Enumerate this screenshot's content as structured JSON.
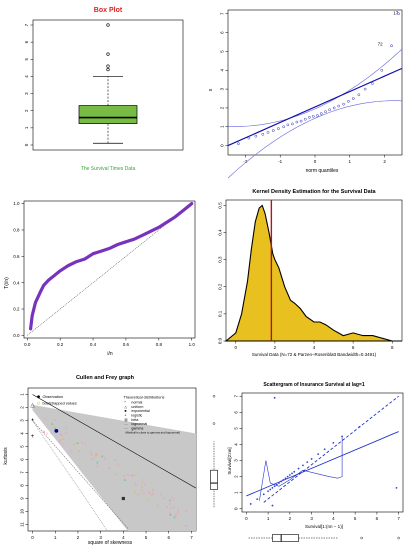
{
  "chart_data": [
    {
      "type": "box",
      "title": "Box Plot",
      "xlabel": "The Survival Times Data",
      "ylim": [
        0,
        7
      ],
      "yticks": [
        0,
        1,
        2,
        3,
        4,
        5,
        6,
        7
      ],
      "box": {
        "whisker_low": 0.1,
        "q1": 1.25,
        "median": 1.6,
        "q3": 2.3,
        "whisker_high": 4.0
      },
      "outliers": [
        4.4,
        4.6,
        5.3,
        7.0
      ],
      "colors": {
        "title": "#dd2222",
        "box": "#77bb44",
        "xlabel": "#33aa33"
      }
    },
    {
      "type": "scatter",
      "subtype": "qq-plot",
      "xlabel": "norm quantiles",
      "ylabel": "x",
      "xlim": [
        -2.5,
        2.5
      ],
      "ylim": [
        -0.5,
        7.2
      ],
      "xticks": [
        -2,
        -1,
        0,
        1,
        2
      ],
      "yticks": [
        0,
        1,
        2,
        3,
        4,
        5,
        6,
        7
      ],
      "annotations": [
        "17",
        "72"
      ],
      "line": [
        [
          -2.5,
          0.0
        ],
        [
          2.5,
          4.1
        ]
      ],
      "points_x": [
        -2.2,
        -1.9,
        -1.7,
        -1.5,
        -1.35,
        -1.2,
        -1.05,
        -0.9,
        -0.78,
        -0.65,
        -0.52,
        -0.4,
        -0.28,
        -0.16,
        -0.05,
        0.07,
        0.18,
        0.3,
        0.42,
        0.55,
        0.68,
        0.82,
        0.96,
        1.1,
        1.26,
        1.44,
        1.65,
        1.92,
        2.2,
        2.4
      ],
      "points_y": [
        0.1,
        0.4,
        0.5,
        0.6,
        0.7,
        0.8,
        0.9,
        1.0,
        1.1,
        1.15,
        1.25,
        1.3,
        1.4,
        1.5,
        1.55,
        1.6,
        1.7,
        1.8,
        1.9,
        2.0,
        2.1,
        2.2,
        2.35,
        2.5,
        2.7,
        3.0,
        3.3,
        4.0,
        5.3,
        7.0
      ],
      "colors": {
        "points": "#3333bb",
        "line": "#1111aa",
        "band": "#6666dd"
      }
    },
    {
      "type": "line",
      "subtype": "ttt-plot",
      "xlabel": "i/n",
      "ylabel": "T(i/n)",
      "xlim": [
        0,
        1
      ],
      "ylim": [
        0,
        1
      ],
      "xticks": [
        0.0,
        0.2,
        0.4,
        0.6,
        0.8,
        1.0
      ],
      "yticks": [
        0.0,
        0.2,
        0.4,
        0.6,
        0.8,
        1.0
      ],
      "x": [
        0.02,
        0.03,
        0.05,
        0.08,
        0.1,
        0.13,
        0.16,
        0.2,
        0.25,
        0.3,
        0.35,
        0.4,
        0.45,
        0.5,
        0.55,
        0.6,
        0.65,
        0.7,
        0.75,
        0.8,
        0.85,
        0.9,
        0.95,
        1.0
      ],
      "y": [
        0.05,
        0.15,
        0.25,
        0.33,
        0.38,
        0.42,
        0.45,
        0.49,
        0.53,
        0.56,
        0.58,
        0.62,
        0.64,
        0.66,
        0.69,
        0.71,
        0.73,
        0.76,
        0.79,
        0.82,
        0.86,
        0.9,
        0.95,
        1.0
      ],
      "colors": {
        "line": "#7733bb"
      }
    },
    {
      "type": "area",
      "subtype": "density",
      "title": "Kernel Density Estimation for the Survival Data",
      "xlabel": "Survival Data (N=72 & Parzen–Rosenblatt Bandwidth=0.3491)",
      "xlim": [
        -0.5,
        8.5
      ],
      "ylim": [
        0,
        0.52
      ],
      "xticks": [
        0,
        2,
        4,
        6,
        8
      ],
      "yticks": [
        0.0,
        0.1,
        0.2,
        0.3,
        0.4,
        0.5
      ],
      "x": [
        -0.5,
        0.0,
        0.3,
        0.6,
        0.8,
        1.0,
        1.2,
        1.35,
        1.5,
        1.7,
        1.9,
        2.0,
        2.2,
        2.5,
        2.8,
        3.0,
        3.3,
        3.6,
        4.0,
        4.3,
        4.6,
        5.0,
        5.5,
        6.0,
        6.5,
        7.0,
        7.5,
        8.0,
        8.5
      ],
      "y": [
        0.0,
        0.03,
        0.1,
        0.22,
        0.34,
        0.44,
        0.49,
        0.5,
        0.47,
        0.4,
        0.32,
        0.3,
        0.27,
        0.2,
        0.15,
        0.14,
        0.12,
        0.09,
        0.07,
        0.07,
        0.06,
        0.04,
        0.02,
        0.03,
        0.02,
        0.02,
        0.01,
        0.0,
        0.0
      ],
      "vline": 1.82,
      "colors": {
        "fill": "#e8c020",
        "line": "#000000",
        "vline": "#bb1111"
      }
    },
    {
      "type": "scatter",
      "subtype": "cullen-frey",
      "title": "Cullen and Frey graph",
      "xlabel": "square of skewness",
      "ylabel": "kurtosis",
      "xlim": [
        0,
        7
      ],
      "ylim": [
        11,
        1
      ],
      "xticks": [
        0,
        1,
        2,
        3,
        4,
        5,
        6,
        7
      ],
      "yticks": [
        1,
        2,
        3,
        4,
        5,
        6,
        7,
        8,
        9,
        10,
        11
      ],
      "legend_left": [
        "Observation",
        "bootstrapped values"
      ],
      "legend_right_title": "Theoretical distributions",
      "legend_right": [
        "normal",
        "uniform",
        "exponential",
        "logistic",
        "beta",
        "lognormal",
        "gamma"
      ],
      "legend_note": "(Weibull is close to gamma and lognormal)",
      "observation": [
        1.05,
        3.8
      ],
      "colors": {
        "band": "#c8c8c8",
        "bootstrap": "#ff88bb",
        "observation": "#000099"
      }
    },
    {
      "type": "scatter",
      "subtype": "lag-scatter",
      "title": "Scattergram of Insurance Survival at lag=1",
      "xlabel": "Survival[1:(nn − 1)]",
      "ylabel": "Survival[2:nn]",
      "xlim": [
        0,
        7
      ],
      "ylim": [
        0,
        7
      ],
      "xticks": [
        0,
        1,
        2,
        3,
        4,
        5,
        6,
        7
      ],
      "yticks": [
        0,
        1,
        2,
        3,
        4,
        5,
        6,
        7
      ],
      "points_x": [
        0.2,
        0.5,
        0.8,
        1.0,
        1.1,
        1.2,
        1.3,
        1.4,
        1.5,
        1.6,
        1.7,
        1.8,
        1.9,
        2.0,
        2.1,
        2.2,
        2.4,
        2.6,
        2.8,
        3.0,
        3.3,
        3.6,
        4.0,
        4.4,
        1.3,
        6.9,
        5.2,
        1.2
      ],
      "points_y": [
        0.3,
        0.6,
        0.9,
        1.1,
        1.2,
        1.3,
        1.4,
        1.5,
        1.6,
        1.7,
        1.8,
        1.9,
        2.0,
        2.1,
        2.2,
        2.3,
        2.5,
        2.7,
        2.9,
        3.1,
        3.4,
        3.7,
        4.1,
        4.5,
        6.9,
        1.3,
        5.1,
        0.2
      ],
      "colors": {
        "points": "#3344cc",
        "lines": "#2233cc"
      }
    }
  ]
}
